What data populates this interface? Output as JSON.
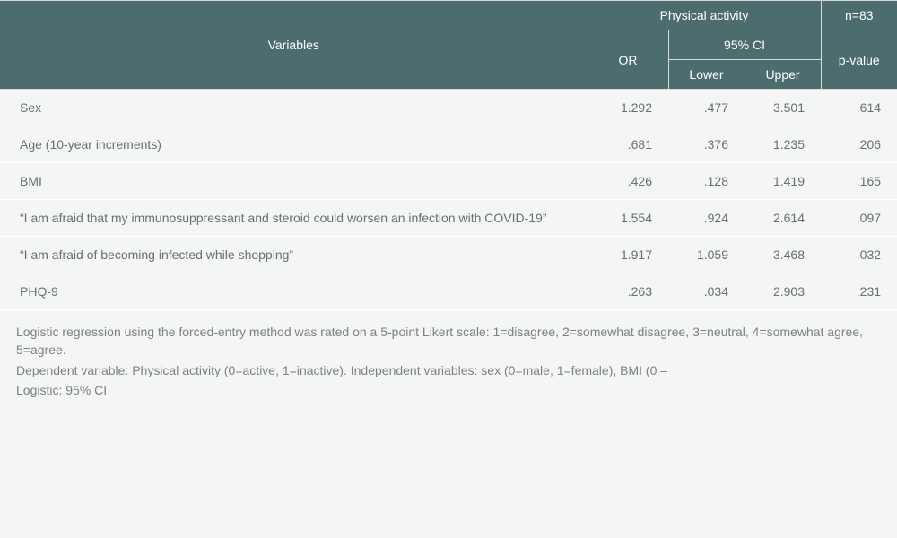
{
  "header": {
    "variables_label": "Variables",
    "group_label": "Physical activity",
    "n_label": "n=83",
    "or_label": "OR",
    "ci_label": "95% CI",
    "lower_label": "Lower",
    "upper_label": "Upper",
    "pvalue_label": "p-value"
  },
  "rows": [
    {
      "variable": "Sex",
      "or": "1.292",
      "lower": ".477",
      "upper": "3.501",
      "p": ".614"
    },
    {
      "variable": "Age (10-year increments)",
      "or": ".681",
      "lower": ".376",
      "upper": "1.235",
      "p": ".206"
    },
    {
      "variable": "BMI",
      "or": ".426",
      "lower": ".128",
      "upper": "1.419",
      "p": ".165"
    },
    {
      "variable": "“I am afraid that my immunosuppressant and steroid could worsen an infection with COVID-19”",
      "or": "1.554",
      "lower": ".924",
      "upper": "2.614",
      "p": ".097"
    },
    {
      "variable": "“I am afraid of becoming infected while shopping”",
      "or": "1.917",
      "lower": "1.059",
      "upper": "3.468",
      "p": ".032"
    },
    {
      "variable": "PHQ-9",
      "or": ".263",
      "lower": ".034",
      "upper": "2.903",
      "p": ".231"
    }
  ],
  "footnote": {
    "line1": "Logistic regression using the forced-entry method was rated on a 5-point Likert scale: 1=disagree, 2=somewhat disagree, 3=neutral, 4=somewhat agree, 5=agree.",
    "line2": "Dependent variable: Physical activity (0=active, 1=inactive). Independent variables: sex (0=male, 1=female), BMI (0 –",
    "line3": "Logistic: 95% CI"
  },
  "style": {
    "header_bg": "#4d6c6d",
    "header_text": "#ffffff",
    "body_bg": "#f4f5f5",
    "row_sep": "#ffffff",
    "cell_border": "#d9dbdb",
    "body_text": "#6a6f70",
    "footnote_text": "#7d8182",
    "font_size_pt": 10.5,
    "type": "table"
  }
}
